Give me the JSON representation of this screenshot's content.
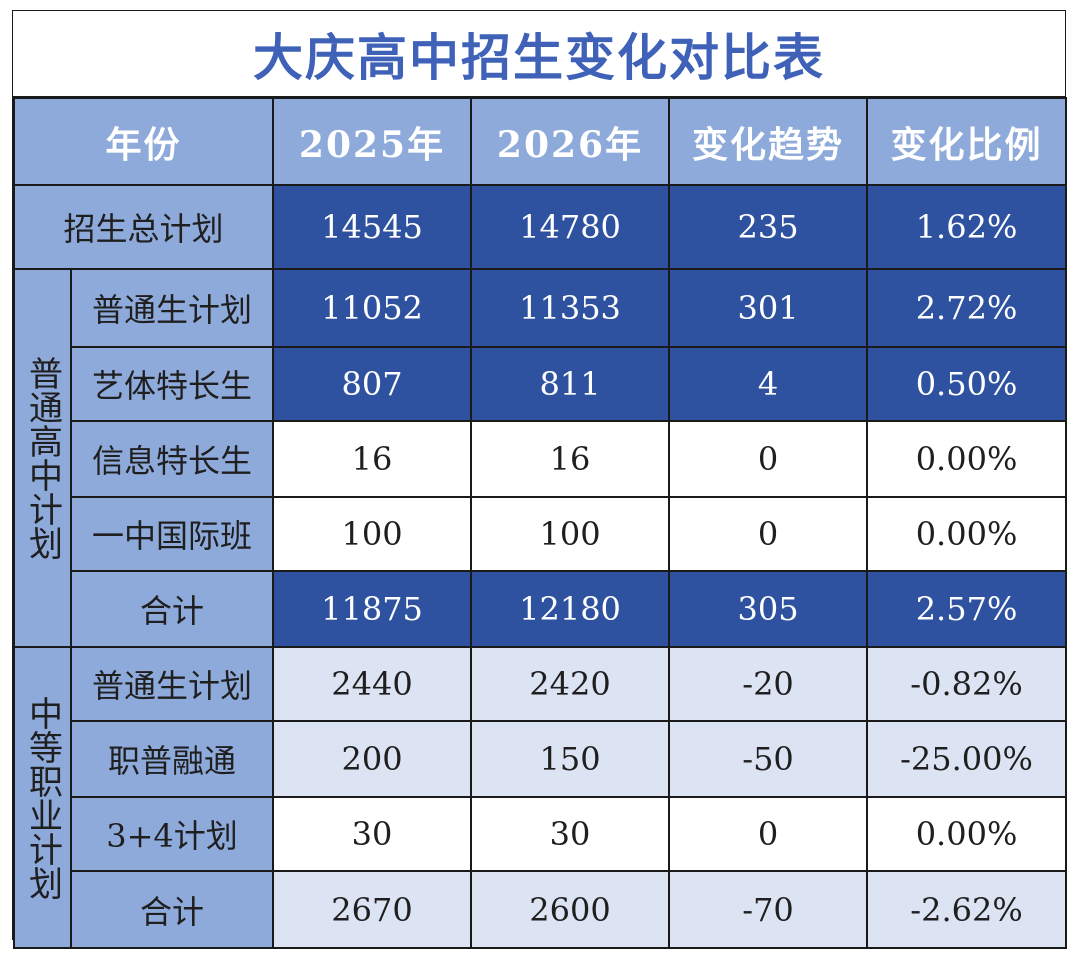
{
  "title": "大庆高中招生变化对比表",
  "header": [
    "年份",
    "2025年",
    "2026年",
    "变化趋势",
    "变化比例"
  ],
  "total_row": {
    "label": "招生总计划",
    "y2025": "14545",
    "y2026": "14780",
    "change": "235",
    "ratio": "1.62%"
  },
  "general_high_school": {
    "group_label": "普通高中计划",
    "rows": [
      {
        "label": "普通生计划",
        "y2025": "11052",
        "y2026": "11353",
        "change": "301",
        "ratio": "2.72%"
      },
      {
        "label": "艺体特长生",
        "y2025": "807",
        "y2026": "811",
        "change": "4",
        "ratio": "0.50%"
      },
      {
        "label": "信息特长生",
        "y2025": "16",
        "y2026": "16",
        "change": "0",
        "ratio": "0.00%"
      },
      {
        "label": "一中国际班",
        "y2025": "100",
        "y2026": "100",
        "change": "0",
        "ratio": "0.00%"
      },
      {
        "label": "合计",
        "y2025": "11875",
        "y2026": "12180",
        "change": "305",
        "ratio": "2.57%"
      }
    ]
  },
  "vocational": {
    "group_label": "中等职业计划",
    "rows": [
      {
        "label": "普通生计划",
        "y2025": "2440",
        "y2026": "2420",
        "change": "-20",
        "ratio": "-0.82%"
      },
      {
        "label": "职普融通",
        "y2025": "200",
        "y2026": "150",
        "change": "-50",
        "ratio": "-25.00%"
      },
      {
        "label": "3+4计划",
        "y2025": "30",
        "y2026": "30",
        "change": "0",
        "ratio": "0.00%"
      },
      {
        "label": "合计",
        "y2025": "2670",
        "y2026": "2600",
        "change": "-70",
        "ratio": "-2.62%"
      }
    ]
  },
  "colors": {
    "title": "#3f62b8",
    "header_bg": "#8eaadb",
    "highlight_bg": "#2f52a0",
    "light_bg": "#dce3f3"
  }
}
